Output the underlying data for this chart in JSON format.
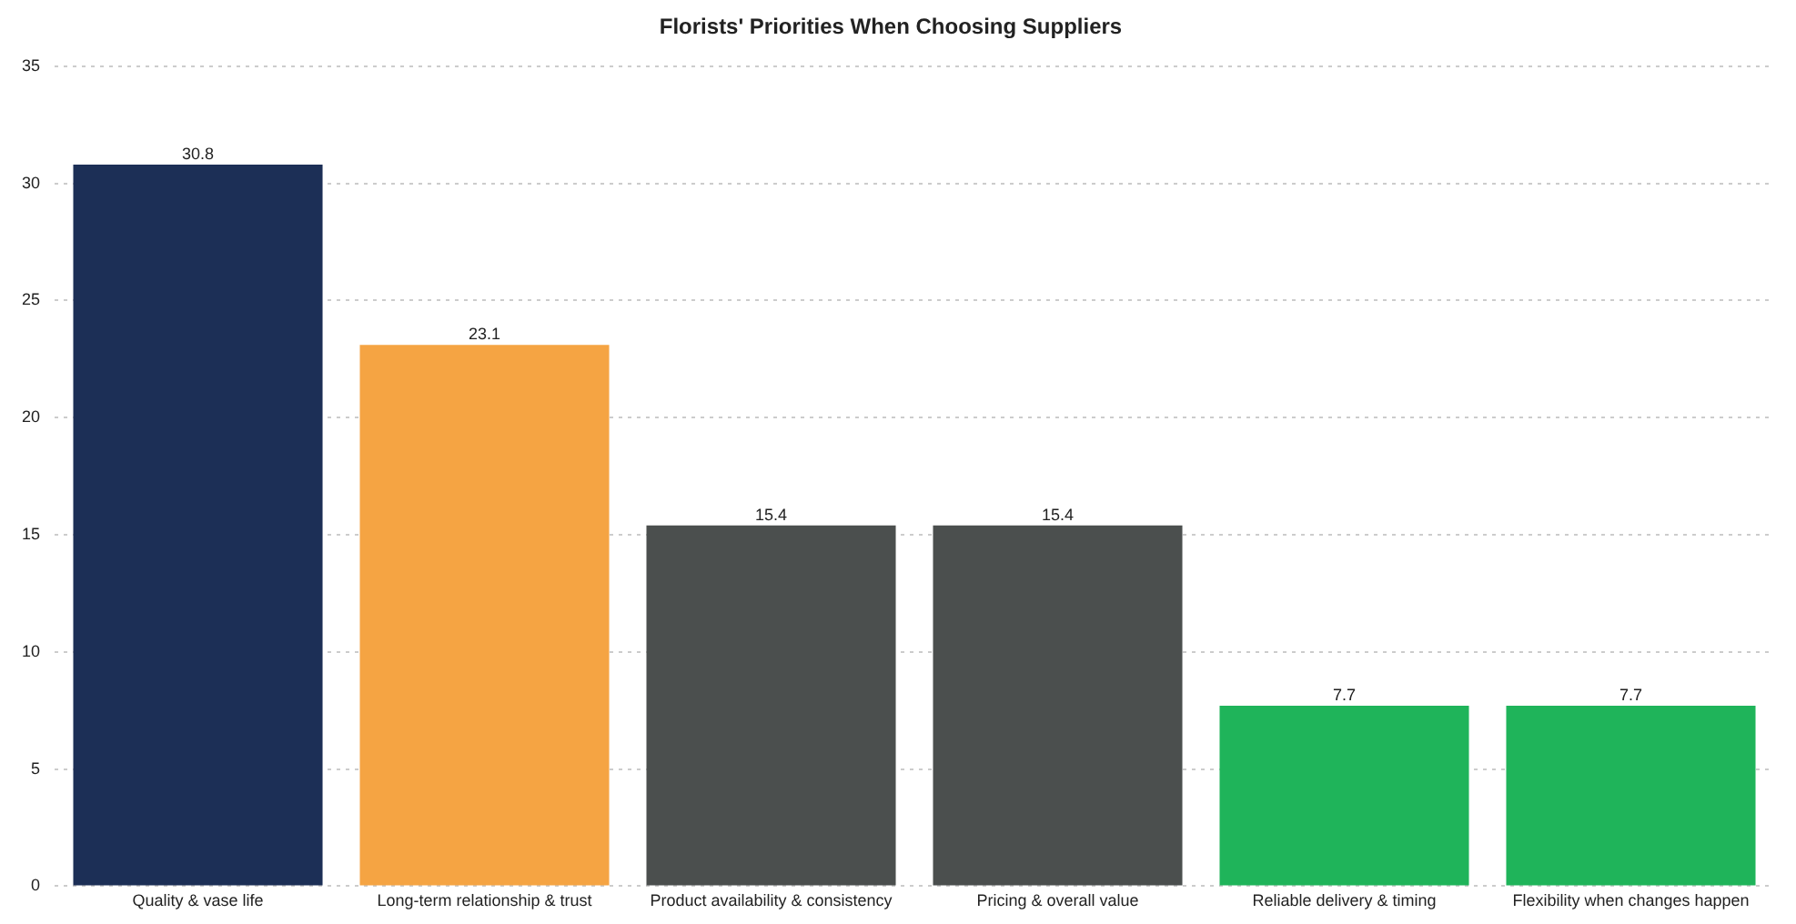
{
  "chart_data": {
    "type": "bar",
    "title": "Florists' Priorities When Choosing Suppliers",
    "categories": [
      "Quality & vase life",
      "Long-term relationship & trust",
      "Product availability & consistency",
      "Pricing & overall value",
      "Reliable delivery & timing",
      "Flexibility when changes happen"
    ],
    "values": [
      30.8,
      23.1,
      15.4,
      15.4,
      7.7,
      7.7
    ],
    "colors": [
      "#1c2f56",
      "#f5a443",
      "#4b4f4e",
      "#4b4f4e",
      "#1fb45a",
      "#1fb45a"
    ],
    "ylim": [
      0,
      35
    ],
    "yticks": [
      0,
      5,
      10,
      15,
      20,
      25,
      30,
      35
    ],
    "grid": "y",
    "data_labels": true,
    "legend": false
  }
}
